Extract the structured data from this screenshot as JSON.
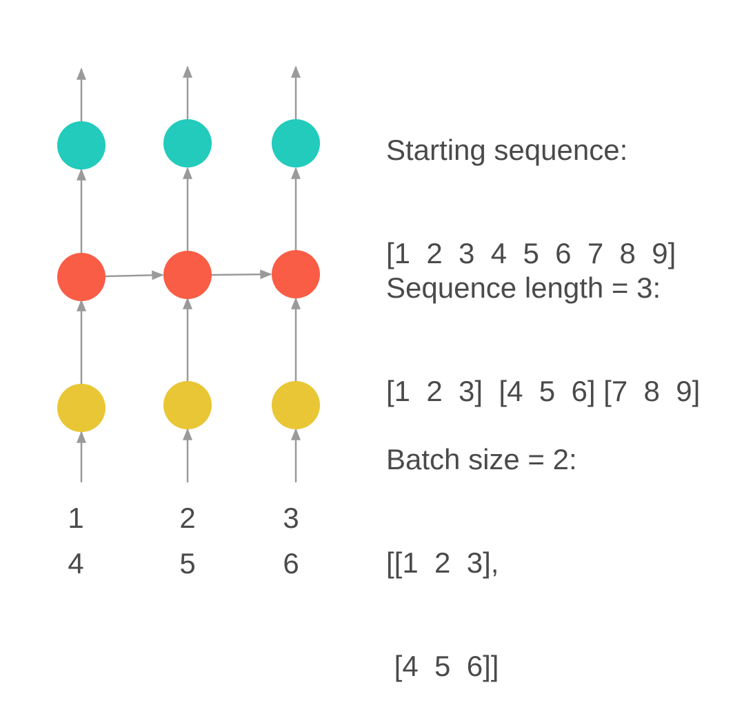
{
  "columns": [
    {
      "top_label": "1",
      "bottom_label": "4"
    },
    {
      "top_label": "2",
      "bottom_label": "5"
    },
    {
      "top_label": "3",
      "bottom_label": "6"
    }
  ],
  "colors": {
    "output": "#22cbbc",
    "hidden": "#f95d45",
    "input": "#e9c635",
    "arrow": "#9a9a9a",
    "text": "#4a4a4a"
  },
  "text_blocks": {
    "starting": {
      "heading": "Starting sequence:",
      "lines": [
        "[1  2  3  4  5  6  7  8  9]"
      ]
    },
    "seq_length": {
      "heading": "Sequence length = 3:",
      "lines": [
        "[1  2  3]  [4  5  6] [7  8  9]"
      ]
    },
    "batch": {
      "heading": "Batch size = 2:",
      "lines": [
        "[[1  2  3],",
        " [4  5  6]]"
      ]
    }
  }
}
